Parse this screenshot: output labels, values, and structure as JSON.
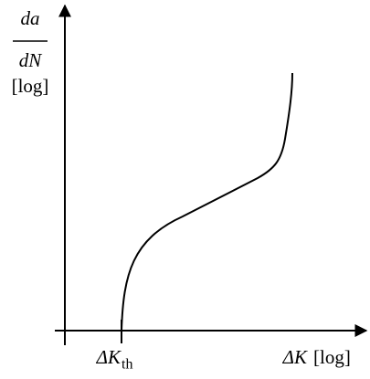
{
  "y_label": {
    "numerator": "da",
    "denominator": "dN",
    "unit": "[log]"
  },
  "x_label": {
    "symbol": "ΔK",
    "unit": "[log]"
  },
  "threshold": {
    "symbol": "ΔK",
    "subscript": "th"
  }
}
